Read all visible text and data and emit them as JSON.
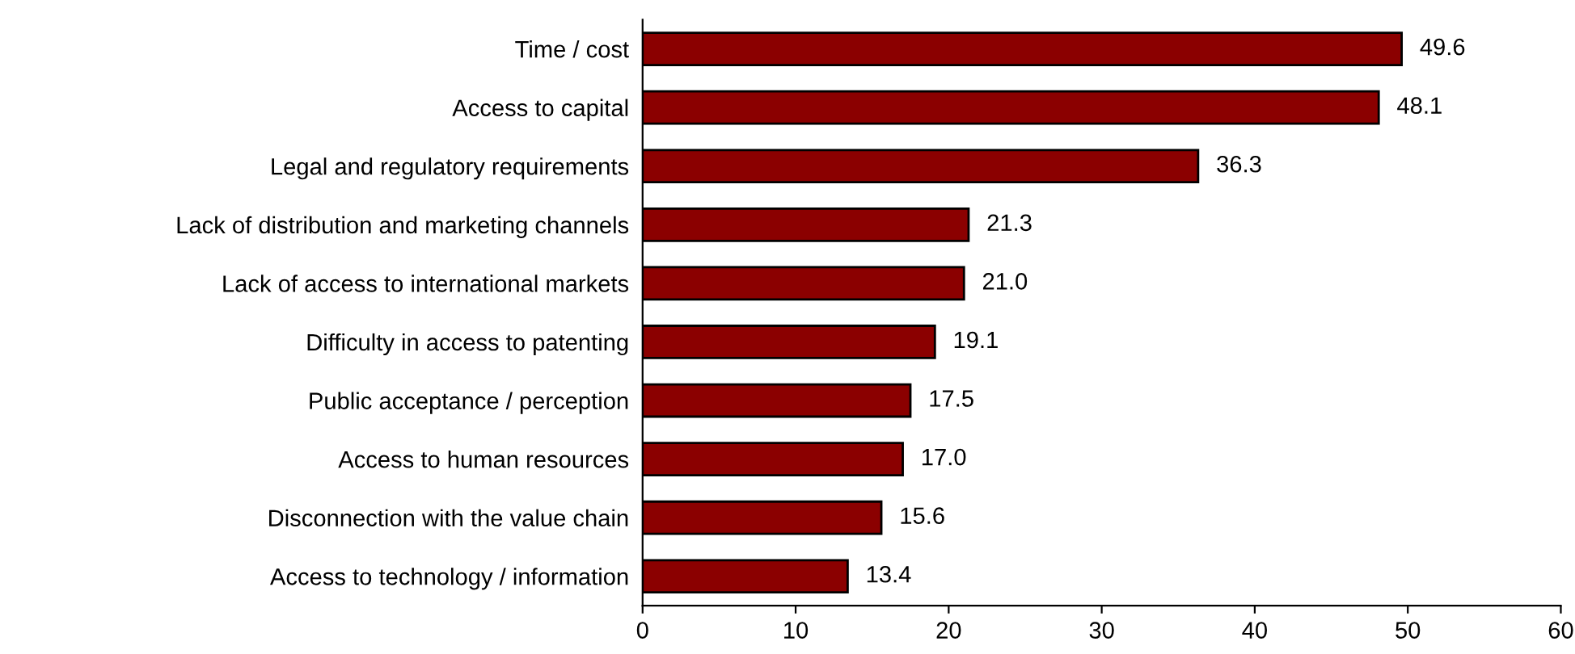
{
  "chart_data": {
    "type": "bar",
    "orientation": "horizontal",
    "categories": [
      "Time / cost",
      "Access to capital",
      "Legal and regulatory requirements",
      "Lack of distribution and marketing channels",
      "Lack of access to international markets",
      "Difficulty in access to patenting",
      "Public acceptance / perception",
      "Access to human resources",
      "Disconnection with the value chain",
      "Access to technology / information"
    ],
    "values": [
      49.6,
      48.1,
      36.3,
      21.3,
      21.0,
      19.1,
      17.5,
      17.0,
      15.6,
      13.4
    ],
    "value_labels": [
      "49.6",
      "48.1",
      "36.3",
      "21.3",
      "21.0",
      "19.1",
      "17.5",
      "17.0",
      "15.6",
      "13.4"
    ],
    "color": "#8b0000",
    "xlim": [
      0,
      60
    ],
    "xticks": [
      0,
      10,
      20,
      30,
      40,
      50,
      60
    ],
    "grid": false
  }
}
